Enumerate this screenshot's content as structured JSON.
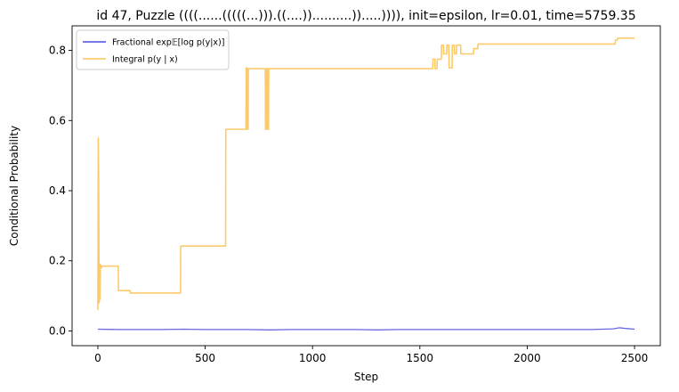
{
  "chart_data": {
    "type": "line",
    "title": "id 47, Puzzle ((((......(((((...))).((....))..........)).....)))), init=epsilon, lr=0.01, time=5759.35",
    "xlabel": "Step",
    "ylabel": "Conditional Probability",
    "xlim": [
      -120,
      2620
    ],
    "ylim": [
      -0.042,
      0.87
    ],
    "xticks": [
      0,
      500,
      1000,
      1500,
      2000,
      2500
    ],
    "xtick_labels": [
      "0",
      "500",
      "1000",
      "1500",
      "2000",
      "2500"
    ],
    "yticks": [
      0.0,
      0.2,
      0.4,
      0.6,
      0.8
    ],
    "ytick_labels": [
      "0.0",
      "0.2",
      "0.4",
      "0.6",
      "0.8"
    ],
    "grid": false,
    "legend_position": "top-left",
    "series": [
      {
        "name": "Fractional exp𝔼[log p(y|x)]",
        "color": "#4c4ce0",
        "x": [
          0,
          100,
          200,
          300,
          400,
          500,
          600,
          700,
          800,
          900,
          1000,
          1100,
          1200,
          1300,
          1400,
          1500,
          1600,
          1700,
          1800,
          1900,
          2000,
          2100,
          2200,
          2300,
          2400,
          2430,
          2460,
          2500
        ],
        "y": [
          0.005,
          0.004,
          0.004,
          0.004,
          0.005,
          0.004,
          0.004,
          0.004,
          0.003,
          0.004,
          0.004,
          0.004,
          0.004,
          0.003,
          0.004,
          0.004,
          0.004,
          0.004,
          0.004,
          0.004,
          0.004,
          0.004,
          0.004,
          0.004,
          0.006,
          0.009,
          0.007,
          0.005
        ]
      },
      {
        "name": "Integral p(y | x)",
        "color": "#fbc45c",
        "x": [
          0,
          2,
          4,
          6,
          8,
          10,
          12,
          16,
          20,
          25,
          95,
          96,
          150,
          151,
          385,
          386,
          595,
          596,
          690,
          691,
          695,
          696,
          700,
          701,
          780,
          781,
          785,
          786,
          790,
          791,
          795,
          796,
          1560,
          1561,
          1570,
          1571,
          1580,
          1581,
          1600,
          1601,
          1610,
          1611,
          1625,
          1626,
          1635,
          1636,
          1650,
          1651,
          1660,
          1661,
          1670,
          1671,
          1690,
          1691,
          1750,
          1751,
          1770,
          1771,
          2410,
          2411,
          2420,
          2421,
          2500
        ],
        "y": [
          0.06,
          0.55,
          0.42,
          0.08,
          0.11,
          0.09,
          0.19,
          0.18,
          0.185,
          0.185,
          0.185,
          0.115,
          0.115,
          0.108,
          0.108,
          0.242,
          0.242,
          0.575,
          0.575,
          0.75,
          0.75,
          0.575,
          0.575,
          0.748,
          0.748,
          0.575,
          0.575,
          0.748,
          0.748,
          0.575,
          0.575,
          0.748,
          0.748,
          0.775,
          0.775,
          0.748,
          0.748,
          0.775,
          0.775,
          0.815,
          0.815,
          0.79,
          0.79,
          0.815,
          0.815,
          0.75,
          0.75,
          0.815,
          0.815,
          0.79,
          0.79,
          0.815,
          0.815,
          0.79,
          0.79,
          0.805,
          0.805,
          0.818,
          0.818,
          0.83,
          0.83,
          0.835,
          0.835
        ]
      }
    ]
  }
}
